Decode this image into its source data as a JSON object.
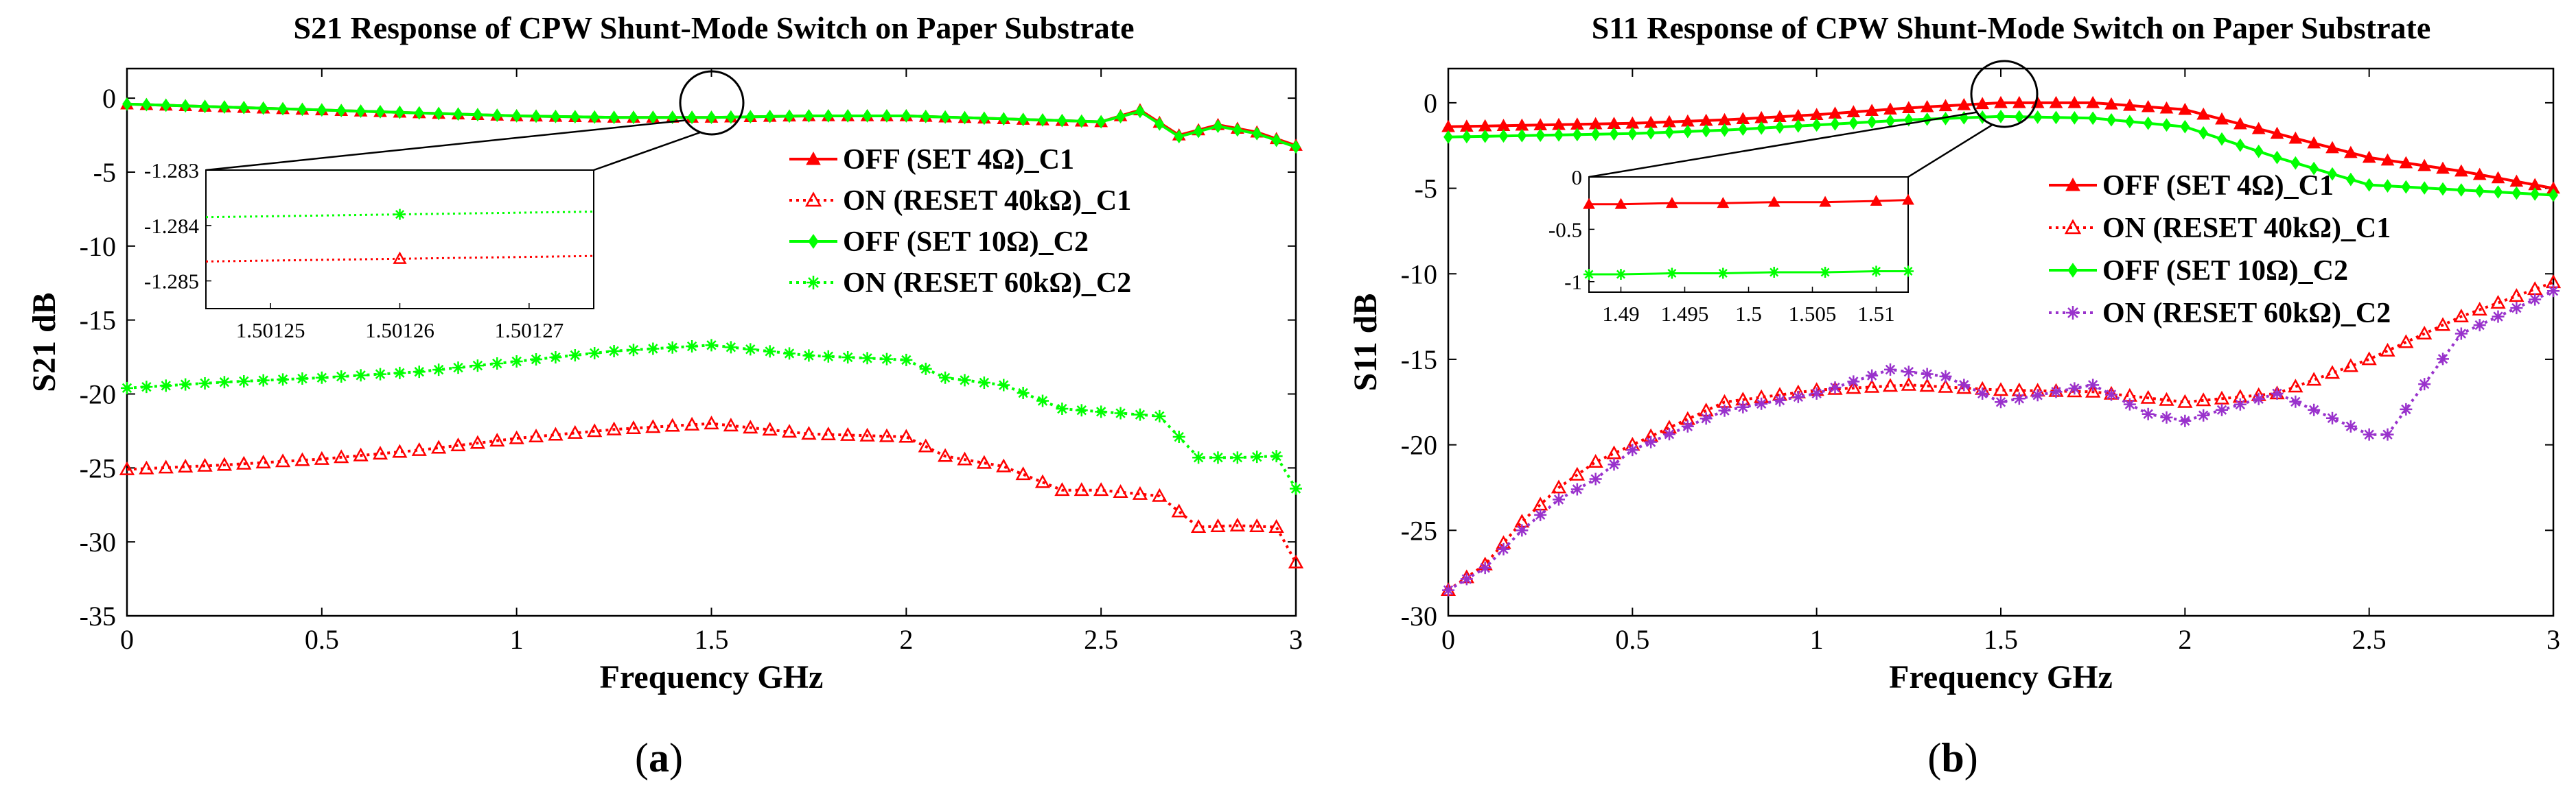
{
  "chart_data": [
    {
      "type": "line",
      "title": "S21 Response of CPW Shunt-Mode Switch on Paper Substrate",
      "xlabel": "Frequency GHz",
      "ylabel": "S21 dB",
      "caption_letter": "a",
      "xlim": [
        0,
        3
      ],
      "ylim": [
        -35,
        2
      ],
      "xticks": [
        0,
        0.5,
        1,
        1.5,
        2,
        2.5,
        3
      ],
      "xtick_labels": [
        "0",
        "0.5",
        "1",
        "1.5",
        "2",
        "2.5",
        "3"
      ],
      "yticks": [
        0,
        -5,
        -10,
        -15,
        -20,
        -25,
        -30,
        -35
      ],
      "ytick_labels": [
        "0",
        "-5",
        "-10",
        "-15",
        "-20",
        "-25",
        "-30",
        "-35"
      ],
      "legend_position": "right",
      "series": [
        {
          "name": "OFF (SET 4Ω)_C1",
          "color": "#ff0000",
          "line": "solid",
          "marker": "filled-triangle",
          "x": [
            0,
            0.25,
            0.5,
            0.75,
            1,
            1.25,
            1.5,
            1.75,
            2,
            2.25,
            2.5,
            2.6,
            2.7,
            2.8,
            2.9,
            3
          ],
          "y": [
            -0.4,
            -0.6,
            -0.8,
            -1.0,
            -1.2,
            -1.3,
            -1.3,
            -1.2,
            -1.2,
            -1.4,
            -1.6,
            -0.8,
            -2.5,
            -1.8,
            -2.3,
            -3.2
          ]
        },
        {
          "name": "ON (RESET 40kΩ)_C1",
          "color": "#ff0000",
          "line": "dotted",
          "marker": "open-triangle",
          "x": [
            0,
            0.25,
            0.5,
            0.75,
            1,
            1.25,
            1.5,
            1.75,
            2,
            2.1,
            2.25,
            2.4,
            2.5,
            2.65,
            2.75,
            2.85,
            2.95,
            3
          ],
          "y": [
            -25.1,
            -24.8,
            -24.4,
            -23.8,
            -23.0,
            -22.4,
            -22.0,
            -22.7,
            -22.9,
            -24.2,
            -24.9,
            -26.5,
            -26.5,
            -26.9,
            -29.0,
            -28.9,
            -29.0,
            -31.4
          ]
        },
        {
          "name": "OFF (SET 10Ω)_C2",
          "color": "#00ff00",
          "line": "solid",
          "marker": "filled-diamond",
          "x": [
            0,
            0.25,
            0.5,
            0.75,
            1,
            1.25,
            1.5,
            1.75,
            2,
            2.25,
            2.5,
            2.6,
            2.7,
            2.8,
            2.9,
            3
          ],
          "y": [
            -0.4,
            -0.6,
            -0.8,
            -1.0,
            -1.2,
            -1.3,
            -1.3,
            -1.2,
            -1.2,
            -1.4,
            -1.6,
            -0.9,
            -2.6,
            -1.9,
            -2.4,
            -3.3
          ]
        },
        {
          "name": "ON (RESET 60kΩ)_C2",
          "color": "#00ff00",
          "line": "dotted",
          "marker": "star",
          "x": [
            0,
            0.25,
            0.5,
            0.75,
            1,
            1.25,
            1.5,
            1.75,
            2,
            2.1,
            2.25,
            2.4,
            2.5,
            2.65,
            2.75,
            2.85,
            2.95,
            3
          ],
          "y": [
            -19.6,
            -19.2,
            -18.9,
            -18.5,
            -17.8,
            -17.1,
            -16.7,
            -17.4,
            -17.7,
            -18.9,
            -19.4,
            -21.0,
            -21.2,
            -21.5,
            -24.3,
            -24.3,
            -24.2,
            -26.4
          ]
        }
      ],
      "annotation": "circle at 1.5 GHz with zoomed inset",
      "inset": {
        "xlim": [
          1.501245,
          1.501275
        ],
        "ylim": [
          -1.2855,
          -1.283
        ],
        "xticks": [
          1.50125,
          1.50126,
          1.50127
        ],
        "xtick_labels": [
          "1.50125",
          "1.50126",
          "1.50127"
        ],
        "yticks": [
          -1.283,
          -1.284,
          -1.285
        ],
        "ytick_labels": [
          "-1.283",
          "-1.284",
          "-1.285"
        ],
        "series": [
          {
            "name": "OFF (SET 4Ω)_C1",
            "color": "#ff0000",
            "line": "dotted",
            "marker": "open-triangle",
            "x": [
              1.501245,
              1.50126,
              1.501275
            ],
            "y": [
              -1.28465,
              -1.2846,
              -1.28455
            ]
          },
          {
            "name": "OFF (SET 10Ω)_C2",
            "color": "#00ff00",
            "line": "dotted",
            "marker": "star",
            "x": [
              1.501245,
              1.50126,
              1.501275
            ],
            "y": [
              -1.28385,
              -1.2838,
              -1.28375
            ]
          }
        ]
      }
    },
    {
      "type": "line",
      "title": "S11 Response of CPW Shunt-Mode Switch on Paper Substrate",
      "xlabel": "Frequency GHz",
      "ylabel": "S11 dB",
      "caption_letter": "b",
      "xlim": [
        0,
        3
      ],
      "ylim": [
        -30,
        2
      ],
      "xticks": [
        0,
        0.5,
        1,
        1.5,
        2,
        2.5,
        3
      ],
      "xtick_labels": [
        "0",
        "0.5",
        "1",
        "1.5",
        "2",
        "2.5",
        "3"
      ],
      "yticks": [
        0,
        -5,
        -10,
        -15,
        -20,
        -25,
        -30
      ],
      "ytick_labels": [
        "0",
        "-5",
        "-10",
        "-15",
        "-20",
        "-25",
        "-30"
      ],
      "legend_position": "right",
      "series": [
        {
          "name": "OFF (SET 4Ω)_C1",
          "color": "#ff0000",
          "line": "solid",
          "marker": "filled-triangle",
          "x": [
            0,
            0.25,
            0.5,
            0.75,
            1,
            1.25,
            1.5,
            1.75,
            2,
            2.25,
            2.5,
            2.75,
            3
          ],
          "y": [
            -1.4,
            -1.3,
            -1.2,
            -1.0,
            -0.7,
            -0.3,
            0.0,
            0.0,
            -0.4,
            -1.8,
            -3.2,
            -4.0,
            -5.0
          ]
        },
        {
          "name": "ON (RESET 40kΩ)_C1",
          "color": "#ff0000",
          "line": "dotted",
          "marker": "open-triangle",
          "x": [
            0,
            0.1,
            0.2,
            0.3,
            0.4,
            0.5,
            0.75,
            1,
            1.25,
            1.5,
            1.75,
            2,
            2.25,
            2.5,
            2.75,
            3
          ],
          "y": [
            -28.5,
            -27.0,
            -24.5,
            -22.5,
            -21.0,
            -20.0,
            -17.5,
            -16.8,
            -16.5,
            -16.8,
            -16.9,
            -17.5,
            -17.0,
            -15.0,
            -12.5,
            -10.5
          ]
        },
        {
          "name": "OFF (SET 10Ω)_C2",
          "color": "#00ff00",
          "line": "solid",
          "marker": "filled-diamond",
          "x": [
            0,
            0.25,
            0.5,
            0.75,
            1,
            1.25,
            1.5,
            1.75,
            2,
            2.25,
            2.5,
            2.75,
            3
          ],
          "y": [
            -2.0,
            -1.9,
            -1.8,
            -1.6,
            -1.3,
            -1.0,
            -0.8,
            -0.9,
            -1.4,
            -3.2,
            -4.8,
            -5.1,
            -5.4
          ]
        },
        {
          "name": "ON (RESET 60kΩ)_C2",
          "color": "#9932cc",
          "line": "dotted",
          "marker": "star",
          "x": [
            0,
            0.1,
            0.2,
            0.3,
            0.4,
            0.5,
            0.75,
            1,
            1.2,
            1.35,
            1.5,
            1.75,
            1.9,
            2.0,
            2.25,
            2.5,
            2.55,
            2.75,
            3
          ],
          "y": [
            -28.5,
            -27.2,
            -25.0,
            -23.2,
            -22.0,
            -20.3,
            -18.0,
            -17.0,
            -15.6,
            -16.0,
            -17.5,
            -16.5,
            -18.2,
            -18.6,
            -17.0,
            -19.4,
            -19.4,
            -13.5,
            -11.0
          ]
        }
      ],
      "annotation": "circle at 1.5 GHz with zoomed inset",
      "inset": {
        "xlim": [
          1.4875,
          1.5125
        ],
        "ylim": [
          -1.1,
          0
        ],
        "xticks": [
          1.49,
          1.495,
          1.5,
          1.505,
          1.51
        ],
        "xtick_labels": [
          "1.49",
          "1.495",
          "1.5",
          "1.505",
          "1.51"
        ],
        "yticks": [
          0,
          -0.5,
          -1
        ],
        "ytick_labels": [
          "0",
          "-0.5",
          "-1"
        ],
        "series": [
          {
            "name": "OFF (SET 4Ω)_C1",
            "color": "#ff0000",
            "line": "solid",
            "marker": "filled-triangle",
            "x": [
              1.4875,
              1.49,
              1.494,
              1.498,
              1.502,
              1.506,
              1.51,
              1.5125
            ],
            "y": [
              -0.26,
              -0.26,
              -0.25,
              -0.25,
              -0.24,
              -0.24,
              -0.23,
              -0.22
            ]
          },
          {
            "name": "OFF (SET 10Ω)_C2",
            "color": "#00ff00",
            "line": "solid",
            "marker": "star",
            "x": [
              1.4875,
              1.49,
              1.494,
              1.498,
              1.502,
              1.506,
              1.51,
              1.5125
            ],
            "y": [
              -0.93,
              -0.93,
              -0.92,
              -0.92,
              -0.91,
              -0.91,
              -0.9,
              -0.9
            ]
          }
        ]
      }
    }
  ]
}
